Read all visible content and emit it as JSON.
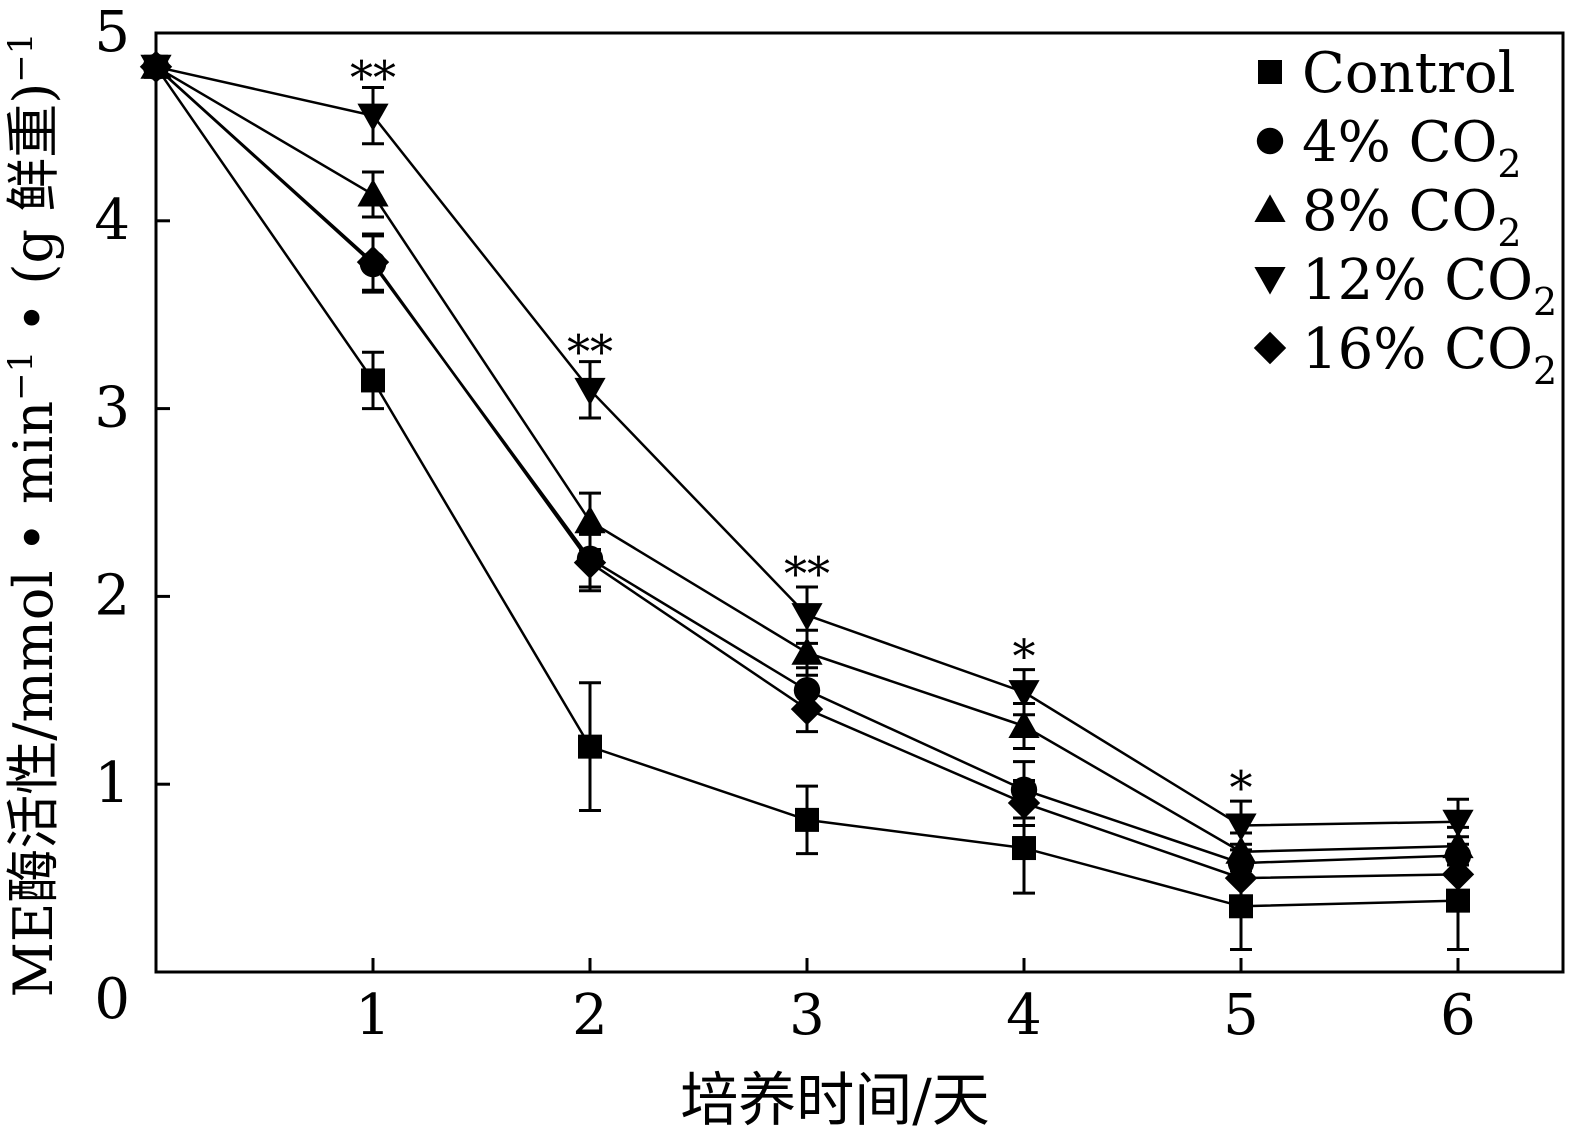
{
  "chart_data": {
    "type": "line",
    "title": "",
    "xlabel": "培养时间/天",
    "ylabel_parts": {
      "main": "ME酶活性/mmol • min",
      "sup1": "−1",
      "mid": " • (g 鲜重)",
      "sup2": "−1"
    },
    "x": [
      0,
      1,
      2,
      3,
      4,
      5,
      6
    ],
    "xlim": [
      0,
      6.4
    ],
    "ylim": [
      0,
      5
    ],
    "x_ticks": [
      1,
      2,
      3,
      4,
      5,
      6
    ],
    "y_ticks": [
      1,
      2,
      3,
      4,
      5
    ],
    "origin_label": "0",
    "grid": false,
    "legend_position": "top-right",
    "series": [
      {
        "name": "Control",
        "legend_main": "Control",
        "legend_sub": "",
        "marker": "square",
        "values": [
          4.82,
          3.15,
          1.2,
          0.81,
          0.66,
          0.35,
          0.38
        ],
        "errors": [
          0,
          0.15,
          0.34,
          0.18,
          0.24,
          0.23,
          0.26
        ]
      },
      {
        "name": "4% CO2",
        "legend_main": "4% CO",
        "legend_sub": "2",
        "marker": "circle",
        "values": [
          4.82,
          3.77,
          2.2,
          1.5,
          0.97,
          0.58,
          0.62
        ],
        "errors": [
          0,
          0.15,
          0.15,
          0.12,
          0.15,
          0.1,
          0.1
        ]
      },
      {
        "name": "8% CO2",
        "legend_main": "8% CO",
        "legend_sub": "2",
        "marker": "triangle-up",
        "values": [
          4.82,
          4.14,
          2.4,
          1.7,
          1.31,
          0.64,
          0.67
        ],
        "errors": [
          0,
          0.12,
          0.15,
          0.12,
          0.12,
          0.1,
          0.1
        ]
      },
      {
        "name": "12% CO2",
        "legend_main": "12% CO",
        "legend_sub": "2",
        "marker": "triangle-down",
        "values": [
          4.82,
          4.56,
          3.1,
          1.9,
          1.49,
          0.78,
          0.8
        ],
        "errors": [
          0,
          0.15,
          0.15,
          0.15,
          0.12,
          0.13,
          0.12
        ]
      },
      {
        "name": "16% CO2",
        "legend_main": "16% CO",
        "legend_sub": "2",
        "marker": "diamond",
        "values": [
          4.82,
          3.78,
          2.18,
          1.4,
          0.9,
          0.5,
          0.52
        ],
        "errors": [
          0,
          0.15,
          0.15,
          0.12,
          0.12,
          0.1,
          0.1
        ]
      }
    ],
    "annotations": [
      {
        "x": 1,
        "y": 4.71,
        "text": "**"
      },
      {
        "x": 2,
        "y": 3.25,
        "text": "**"
      },
      {
        "x": 3,
        "y": 2.07,
        "text": "**"
      },
      {
        "x": 4,
        "y": 1.63,
        "text": "*"
      },
      {
        "x": 5,
        "y": 0.93,
        "text": "*"
      }
    ]
  }
}
